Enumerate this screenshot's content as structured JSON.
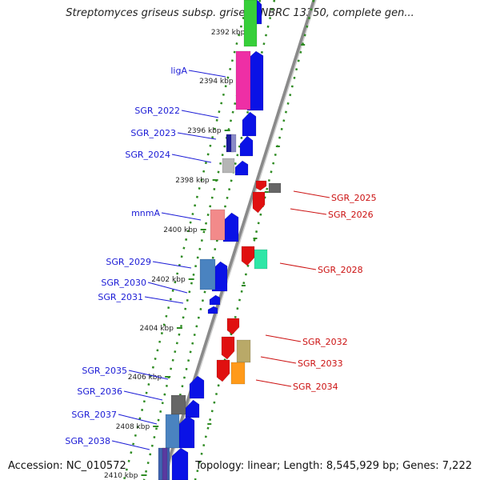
{
  "title": "Streptomyces griseus subsp. griseus NBRC 13350, complete gen...",
  "footer": {
    "accession": "Accession: NC_010572",
    "topology": "Topology: linear; Length: 8,545,929 bp; Genes: 7,222"
  },
  "ticks": [
    {
      "label": "2392 kbp"
    },
    {
      "label": "2394 kbp"
    },
    {
      "label": "2396 kbp"
    },
    {
      "label": "2398 kbp"
    },
    {
      "label": "2400 kbp"
    },
    {
      "label": "2402 kbp"
    },
    {
      "label": "2404 kbp"
    },
    {
      "label": "2406 kbp"
    },
    {
      "label": "2408 kbp"
    },
    {
      "label": "2410 kbp"
    }
  ],
  "genes_left": [
    {
      "label": "ligA"
    },
    {
      "label": "SGR_2022"
    },
    {
      "label": "SGR_2023"
    },
    {
      "label": "SGR_2024"
    },
    {
      "label": "mnmA"
    },
    {
      "label": "SGR_2029"
    },
    {
      "label": "SGR_2030"
    },
    {
      "label": "SGR_2031"
    },
    {
      "label": "SGR_2035"
    },
    {
      "label": "SGR_2036"
    },
    {
      "label": "SGR_2037"
    },
    {
      "label": "SGR_2038"
    }
  ],
  "genes_right": [
    {
      "label": "SGR_2025"
    },
    {
      "label": "SGR_2026"
    },
    {
      "label": "SGR_2028"
    },
    {
      "label": "SGR_2032"
    },
    {
      "label": "SGR_2033"
    },
    {
      "label": "SGR_2034"
    }
  ],
  "colors": {
    "forward_strand": "#0a12e6",
    "reverse_strand": "#e01010",
    "label_forward": "#1b1bd6",
    "label_reverse": "#cc1111",
    "backbone": "#8a8a8a",
    "dots": "#2e8b22"
  }
}
